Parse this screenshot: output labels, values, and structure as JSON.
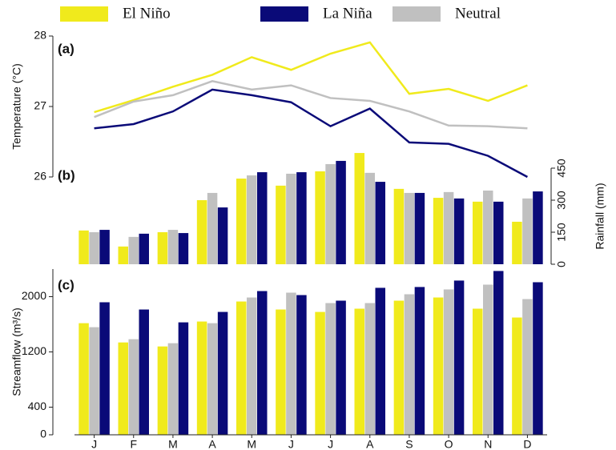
{
  "chart_data": [
    {
      "type": "line",
      "panel_label": "(a)",
      "y_label": "Temperature (°C)",
      "y_axis_side": "left",
      "ylim": [
        26,
        28
      ],
      "yticks": [
        26,
        27,
        28
      ],
      "series": [
        {
          "name": "El Niño",
          "color": "#f0ea1c",
          "values": [
            26.92,
            27.09,
            27.28,
            27.45,
            27.7,
            27.52,
            27.75,
            27.91,
            27.18,
            27.25,
            27.08,
            27.3
          ]
        },
        {
          "name": "La Niña",
          "color": "#0a0a78",
          "values": [
            26.69,
            26.75,
            26.93,
            27.24,
            27.16,
            27.06,
            26.72,
            26.97,
            26.49,
            26.47,
            26.3,
            26.0
          ]
        },
        {
          "name": "Neutral",
          "color": "#c0c0c0",
          "values": [
            26.85,
            27.07,
            27.16,
            27.36,
            27.24,
            27.3,
            27.12,
            27.08,
            26.93,
            26.73,
            26.72,
            26.69
          ]
        }
      ]
    },
    {
      "type": "bar",
      "panel_label": "(b)",
      "y_label": "Rainfall (mm)",
      "y_axis_side": "right",
      "ylim": [
        0,
        450
      ],
      "yticks": [
        0,
        150,
        300,
        450
      ],
      "series": [
        {
          "color": "#f0ea1c",
          "values": [
            158,
            83,
            150,
            300,
            401,
            368,
            435,
            521,
            353,
            311,
            293,
            199
          ]
        },
        {
          "color": "#c0c0c0",
          "values": [
            150,
            128,
            161,
            334,
            416,
            424,
            469,
            428,
            334,
            338,
            345,
            308
          ]
        },
        {
          "color": "#0a0a78",
          "values": [
            161,
            143,
            146,
            266,
            431,
            431,
            484,
            386,
            334,
            308,
            293,
            341
          ]
        }
      ]
    },
    {
      "type": "bar",
      "panel_label": "(c)",
      "y_label": "Streamflow (m³/s)",
      "y_axis_side": "left",
      "ylim": [
        0,
        2400
      ],
      "yticks": [
        0,
        400,
        1200,
        2000
      ],
      "categories": [
        "J",
        "F",
        "M",
        "A",
        "M",
        "J",
        "J",
        "A",
        "S",
        "O",
        "N",
        "D"
      ],
      "series": [
        {
          "color": "#f0ea1c",
          "values": [
            1616,
            1337,
            1279,
            1640,
            1930,
            1814,
            1779,
            1826,
            1942,
            1988,
            1826,
            1698
          ]
        },
        {
          "color": "#c0c0c0",
          "values": [
            1558,
            1384,
            1326,
            1616,
            1988,
            2058,
            1907,
            1907,
            2035,
            2105,
            2174,
            1965
          ]
        },
        {
          "color": "#0a0a78",
          "values": [
            1919,
            1814,
            1628,
            1779,
            2081,
            2023,
            1942,
            2128,
            2140,
            2233,
            2372,
            2209
          ]
        }
      ]
    }
  ]
}
